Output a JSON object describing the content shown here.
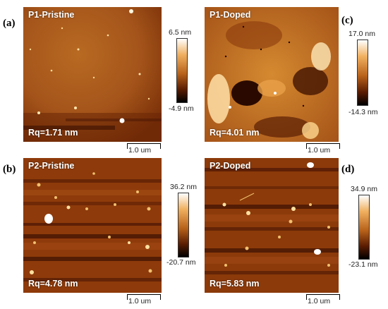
{
  "panels": [
    {
      "letter": "(a)",
      "title": "P1-Pristine",
      "rq": "Rq=1.71 nm",
      "cb_max": "6.5 nm",
      "cb_min": "-4.9 nm",
      "scale": "1.0 um"
    },
    {
      "letter": "(c)",
      "title": "P1-Doped",
      "rq": "Rq=4.01 nm",
      "cb_max": "17.0 nm",
      "cb_min": "-14.3 nm",
      "scale": "1.0 um"
    },
    {
      "letter": "(b)",
      "title": "P2-Pristine",
      "rq": "Rq=4.78 nm",
      "cb_max": "36.2 nm",
      "cb_min": "-20.7 nm",
      "scale": "1.0 um"
    },
    {
      "letter": "(d)",
      "title": "P2-Doped",
      "rq": "Rq=5.83 nm",
      "cb_max": "34.9 nm",
      "cb_min": "-23.1 nm",
      "scale": "1.0 um"
    }
  ],
  "colors": {
    "afm_dark": "#3a0c00",
    "afm_mid": "#a04a10",
    "afm_light": "#e8a040",
    "afm_peak": "#ffffff"
  }
}
